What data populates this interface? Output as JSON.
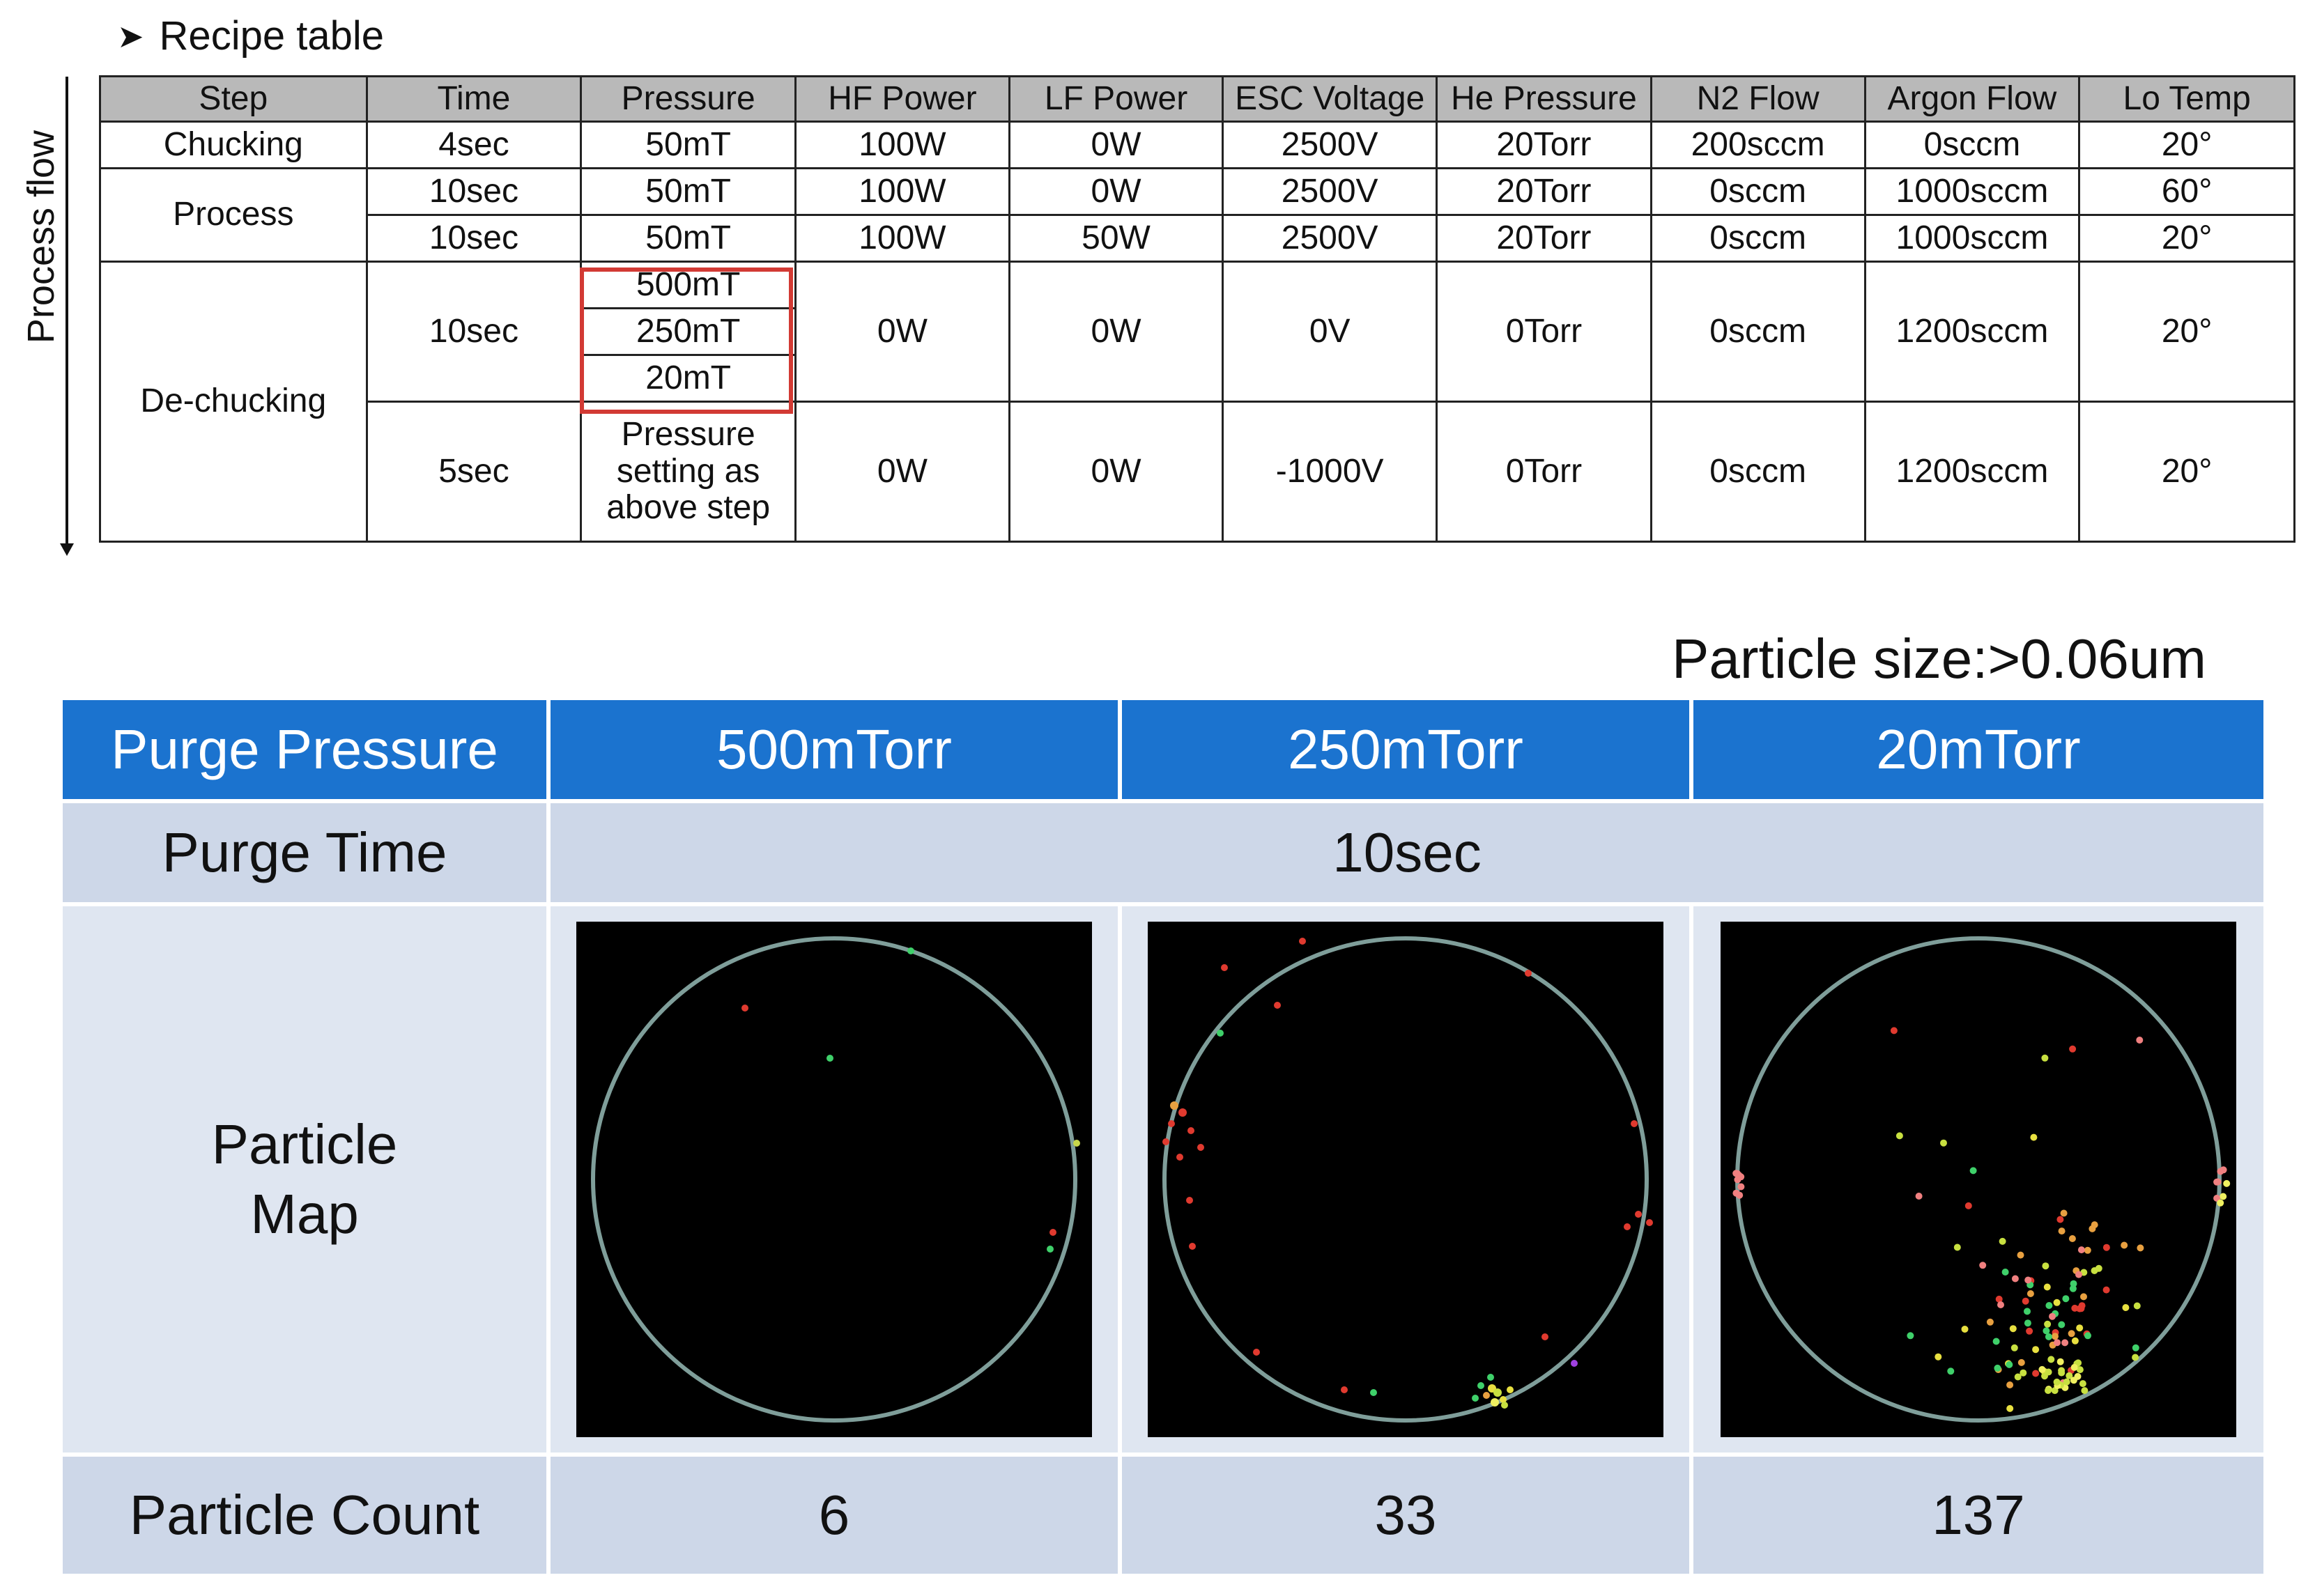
{
  "recipe": {
    "title": "Recipe table",
    "flow_label": "Process flow",
    "headers": [
      "Step",
      "Time",
      "Pressure",
      "HF Power",
      "LF Power",
      "ESC Voltage",
      "He Pressure",
      "N2 Flow",
      "Argon Flow",
      "Lo Temp"
    ],
    "chucking": {
      "step": "Chucking",
      "time": "4sec",
      "pressure": "50mT",
      "hf": "100W",
      "lf": "0W",
      "esc": "2500V",
      "he": "20Torr",
      "n2": "200sccm",
      "argon": "0sccm",
      "temp": "20°"
    },
    "process": {
      "step": "Process",
      "rows": [
        {
          "time": "10sec",
          "pressure": "50mT",
          "hf": "100W",
          "lf": "0W",
          "esc": "2500V",
          "he": "20Torr",
          "n2": "0sccm",
          "argon": "1000sccm",
          "temp": "60°"
        },
        {
          "time": "10sec",
          "pressure": "50mT",
          "hf": "100W",
          "lf": "50W",
          "esc": "2500V",
          "he": "20Torr",
          "n2": "0sccm",
          "argon": "1000sccm",
          "temp": "20°"
        }
      ]
    },
    "dechucking": {
      "step": "De-chucking",
      "row1": {
        "time": "10sec",
        "pressures": [
          "500mT",
          "250mT",
          "20mT"
        ],
        "hf": "0W",
        "lf": "0W",
        "esc": "0V",
        "he": "0Torr",
        "n2": "0sccm",
        "argon": "1200sccm",
        "temp": "20°"
      },
      "row2": {
        "time": "5sec",
        "pressure": "Pressure setting as above step",
        "hf": "0W",
        "lf": "0W",
        "esc": "-1000V",
        "he": "0Torr",
        "n2": "0sccm",
        "argon": "1200sccm",
        "temp": "20°"
      }
    }
  },
  "particle_size": "Particle size:>0.06um",
  "purge": {
    "header_label": "Purge Pressure",
    "pressures": [
      "500mTorr",
      "250mTorr",
      "20mTorr"
    ],
    "time_label": "Purge Time",
    "time_value": "10sec",
    "map_label_line1": "Particle",
    "map_label_line2": "Map",
    "count_label": "Particle Count",
    "counts": [
      "6",
      "33",
      "137"
    ]
  },
  "colors": {
    "header_blue": "#1b73cf",
    "row_light": "#cdd7e8",
    "highlight_red": "#d23a34"
  }
}
